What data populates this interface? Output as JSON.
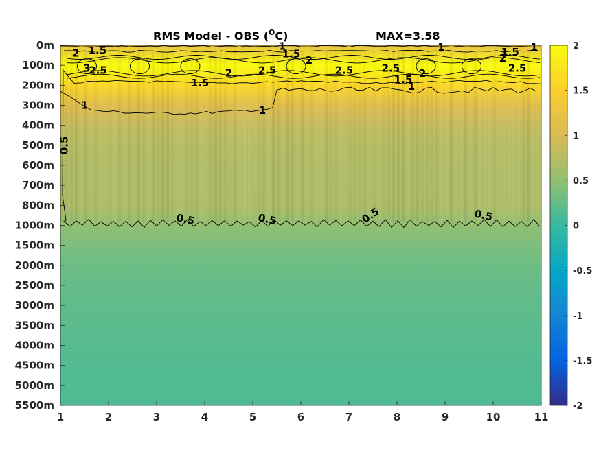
{
  "chart_data": {
    "type": "heatmap",
    "title": "RMS Model - OBS (",
    "title_sup": "O",
    "title_unit": "C)",
    "max_label": "MAX=3.58",
    "x_ticks": [
      "1",
      "2",
      "3",
      "4",
      "5",
      "6",
      "7",
      "8",
      "9",
      "10",
      "11"
    ],
    "xlim": [
      1,
      11
    ],
    "y_ticks": [
      "0m",
      "100m",
      "200m",
      "300m",
      "400m",
      "500m",
      "600m",
      "700m",
      "800m",
      "1000m",
      "1500m",
      "2000m",
      "2500m",
      "3000m",
      "3500m",
      "4000m",
      "4500m",
      "5000m",
      "5500m"
    ],
    "colorbar": {
      "ticks": [
        "2",
        "1.5",
        "1",
        "0.5",
        "0",
        "-0.5",
        "-1",
        "-1.5",
        "-2"
      ],
      "range": [
        -2,
        2
      ],
      "colormap": "parula"
    },
    "depth_profile": [
      {
        "depth": "0m",
        "value": 1.2
      },
      {
        "depth": "100m",
        "value": 2.6
      },
      {
        "depth": "200m",
        "value": 1.6
      },
      {
        "depth": "300m",
        "value": 1.1
      },
      {
        "depth": "400m",
        "value": 0.85
      },
      {
        "depth": "500m",
        "value": 0.75
      },
      {
        "depth": "600m",
        "value": 0.72
      },
      {
        "depth": "700m",
        "value": 0.72
      },
      {
        "depth": "800m",
        "value": 0.7
      },
      {
        "depth": "1000m",
        "value": 0.5
      },
      {
        "depth": "1500m",
        "value": 0.38
      },
      {
        "depth": "2000m",
        "value": 0.3
      },
      {
        "depth": "2500m",
        "value": 0.25
      },
      {
        "depth": "3000m",
        "value": 0.22
      },
      {
        "depth": "3500m",
        "value": 0.2
      },
      {
        "depth": "4000m",
        "value": 0.17
      },
      {
        "depth": "4500m",
        "value": 0.15
      },
      {
        "depth": "5000m",
        "value": 0.14
      },
      {
        "depth": "5500m",
        "value": 0.13
      }
    ],
    "contour_labels": [
      {
        "text": "1.5",
        "x": 1.77,
        "y": 0.25
      },
      {
        "text": "2",
        "x": 1.32,
        "y": 0.4
      },
      {
        "text": "3",
        "x": 1.55,
        "y": 1.15
      },
      {
        "text": "2.5",
        "x": 1.78,
        "y": 1.25
      },
      {
        "text": "1",
        "x": 5.61,
        "y": 0.05
      },
      {
        "text": "1.5",
        "x": 5.8,
        "y": 0.42
      },
      {
        "text": "2",
        "x": 6.17,
        "y": 0.75
      },
      {
        "text": "2",
        "x": 4.5,
        "y": 1.38
      },
      {
        "text": "2.5",
        "x": 5.3,
        "y": 1.25
      },
      {
        "text": "1.5",
        "x": 3.9,
        "y": 1.88
      },
      {
        "text": "2.5",
        "x": 6.9,
        "y": 1.25
      },
      {
        "text": "2.5",
        "x": 7.87,
        "y": 1.15
      },
      {
        "text": "2",
        "x": 8.53,
        "y": 1.4
      },
      {
        "text": "1.5",
        "x": 8.13,
        "y": 1.72
      },
      {
        "text": "1",
        "x": 8.3,
        "y": 2.05
      },
      {
        "text": "1",
        "x": 8.92,
        "y": 0.1
      },
      {
        "text": "1.5",
        "x": 10.35,
        "y": 0.35
      },
      {
        "text": "2",
        "x": 10.2,
        "y": 0.65
      },
      {
        "text": "1",
        "x": 10.85,
        "y": 0.1
      },
      {
        "text": "2.5",
        "x": 10.5,
        "y": 1.15
      },
      {
        "text": "1",
        "x": 1.5,
        "y": 3.0
      },
      {
        "text": "1",
        "x": 5.2,
        "y": 3.25
      },
      {
        "text": "0.5",
        "x": 1.08,
        "y": 5.0
      },
      {
        "text": "0.5",
        "x": 3.6,
        "y": 8.7
      },
      {
        "text": "0.5",
        "x": 5.3,
        "y": 8.7
      },
      {
        "text": "0.5",
        "x": 7.45,
        "y": 8.5
      },
      {
        "text": "0.5",
        "x": 9.8,
        "y": 8.5
      }
    ]
  },
  "colors": {
    "axis": "#262626",
    "contour": "#000000",
    "parula": [
      "#352a87",
      "#0363e1",
      "#1485d4",
      "#06a7c6",
      "#38b99e",
      "#92bf73",
      "#d9ba56",
      "#fcce2e",
      "#f9fb0e"
    ]
  }
}
